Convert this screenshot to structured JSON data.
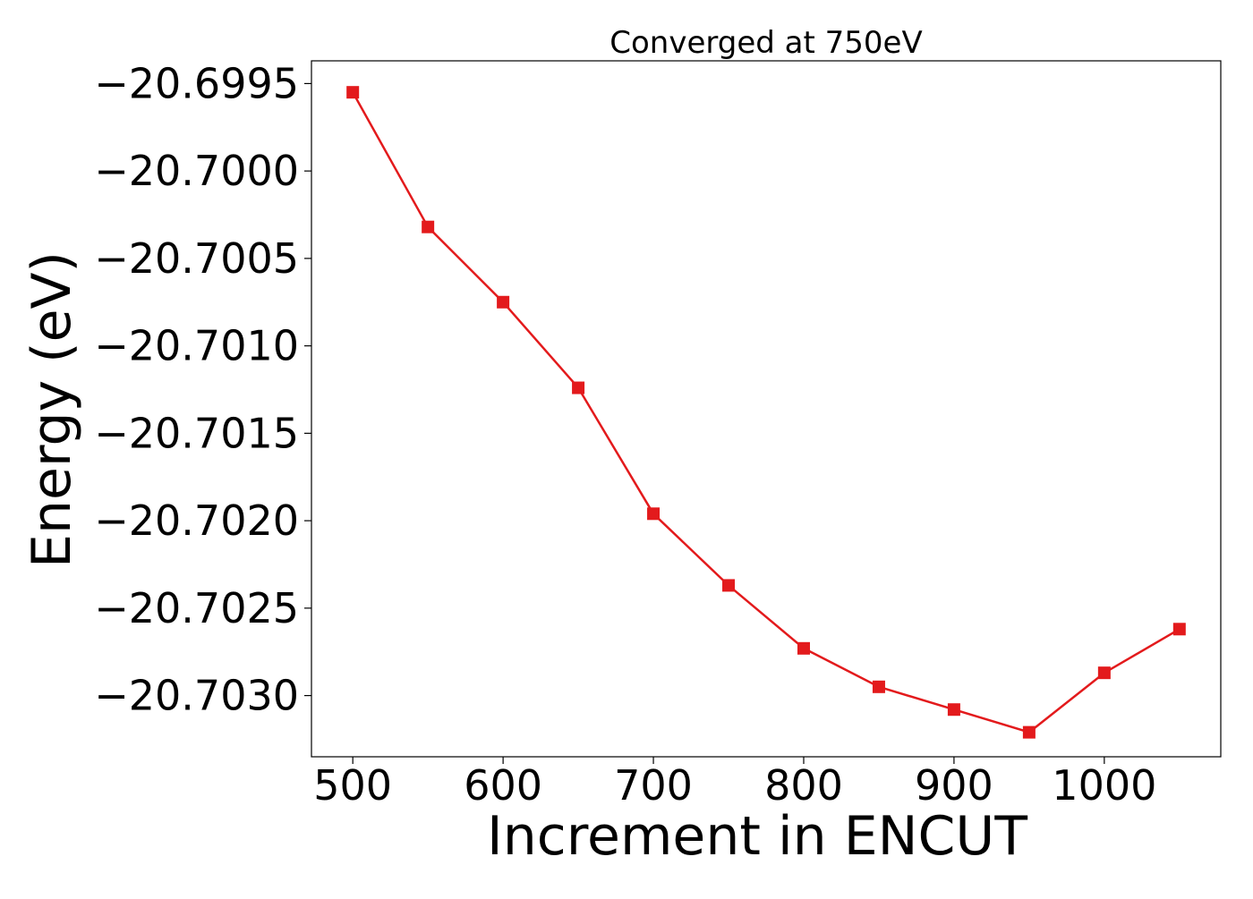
{
  "chart_data": {
    "type": "line",
    "title": "Converged at 750eV",
    "xlabel": "Increment in ENCUT",
    "ylabel": "Energy (eV)",
    "x": [
      500,
      550,
      600,
      650,
      700,
      750,
      800,
      850,
      900,
      950,
      1000,
      1050
    ],
    "series": [
      {
        "values": [
          -20.69955,
          -20.70032,
          -20.70075,
          -20.70124,
          -20.70196,
          -20.70237,
          -20.70273,
          -20.70295,
          -20.70308,
          -20.70321,
          -20.70287,
          -20.70262
        ],
        "color": "#e31a1c",
        "marker": "square"
      }
    ],
    "xlim": [
      472.5,
      1077.5
    ],
    "ylim": [
      -20.70335,
      -20.69937
    ],
    "xticks": [
      500,
      600,
      700,
      800,
      900,
      1000
    ],
    "xtick_labels": [
      "500",
      "600",
      "700",
      "800",
      "900",
      "1000"
    ],
    "yticks": [
      -20.6995,
      -20.7,
      -20.7005,
      -20.701,
      -20.7015,
      -20.702,
      -20.7025,
      -20.703
    ],
    "ytick_labels": [
      "−20.6995",
      "−20.7000",
      "−20.7005",
      "−20.7010",
      "−20.7015",
      "−20.7020",
      "−20.7025",
      "−20.7030"
    ],
    "grid": false,
    "legend": false
  }
}
